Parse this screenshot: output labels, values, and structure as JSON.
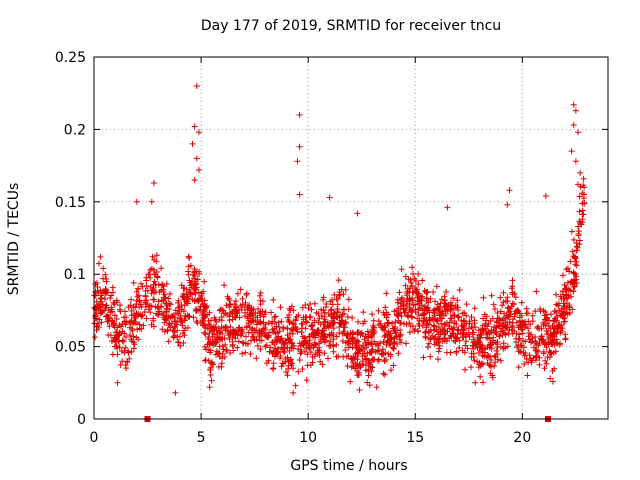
{
  "chart_data": {
    "type": "scatter",
    "title": "Day 177 of 2019, SRMTID for receiver tncu",
    "xlabel": "GPS time / hours",
    "ylabel": "SRMTID / TECUs",
    "xlim": [
      0,
      24
    ],
    "ylim": [
      0,
      0.25
    ],
    "grid": true,
    "x_ticks": [
      0,
      5,
      10,
      15,
      20
    ],
    "y_ticks": [
      0,
      0.05,
      0.1,
      0.15,
      0.2,
      0.25
    ],
    "x_tick_labels": [
      "0",
      "5",
      "10",
      "15",
      "20"
    ],
    "y_tick_labels": [
      "0",
      "0.05",
      "0.1",
      "0.15",
      "0.2",
      "0.25"
    ],
    "marker": "+",
    "color": "#e00000",
    "series": [
      {
        "name": "SRMTID",
        "profile": [
          {
            "x": 0.0,
            "y": 0.078
          },
          {
            "x": 0.5,
            "y": 0.085
          },
          {
            "x": 1.0,
            "y": 0.06
          },
          {
            "x": 1.5,
            "y": 0.055
          },
          {
            "x": 2.0,
            "y": 0.07
          },
          {
            "x": 2.5,
            "y": 0.085
          },
          {
            "x": 3.0,
            "y": 0.09
          },
          {
            "x": 3.5,
            "y": 0.07
          },
          {
            "x": 4.0,
            "y": 0.065
          },
          {
            "x": 4.5,
            "y": 0.095
          },
          {
            "x": 5.0,
            "y": 0.08
          },
          {
            "x": 5.5,
            "y": 0.05
          },
          {
            "x": 6.0,
            "y": 0.06
          },
          {
            "x": 6.5,
            "y": 0.065
          },
          {
            "x": 7.0,
            "y": 0.07
          },
          {
            "x": 7.5,
            "y": 0.065
          },
          {
            "x": 8.0,
            "y": 0.06
          },
          {
            "x": 8.5,
            "y": 0.055
          },
          {
            "x": 9.0,
            "y": 0.05
          },
          {
            "x": 9.5,
            "y": 0.06
          },
          {
            "x": 10.0,
            "y": 0.055
          },
          {
            "x": 10.5,
            "y": 0.06
          },
          {
            "x": 11.0,
            "y": 0.065
          },
          {
            "x": 11.5,
            "y": 0.07
          },
          {
            "x": 12.0,
            "y": 0.05
          },
          {
            "x": 12.5,
            "y": 0.045
          },
          {
            "x": 13.0,
            "y": 0.05
          },
          {
            "x": 13.5,
            "y": 0.055
          },
          {
            "x": 14.0,
            "y": 0.06
          },
          {
            "x": 14.5,
            "y": 0.08
          },
          {
            "x": 15.0,
            "y": 0.085
          },
          {
            "x": 15.5,
            "y": 0.07
          },
          {
            "x": 16.0,
            "y": 0.065
          },
          {
            "x": 16.5,
            "y": 0.07
          },
          {
            "x": 17.0,
            "y": 0.065
          },
          {
            "x": 17.5,
            "y": 0.06
          },
          {
            "x": 18.0,
            "y": 0.05
          },
          {
            "x": 18.5,
            "y": 0.055
          },
          {
            "x": 19.0,
            "y": 0.06
          },
          {
            "x": 19.5,
            "y": 0.075
          },
          {
            "x": 20.0,
            "y": 0.06
          },
          {
            "x": 20.5,
            "y": 0.055
          },
          {
            "x": 21.0,
            "y": 0.055
          },
          {
            "x": 21.5,
            "y": 0.06
          },
          {
            "x": 22.0,
            "y": 0.075
          },
          {
            "x": 22.5,
            "y": 0.11
          },
          {
            "x": 22.8,
            "y": 0.15
          }
        ],
        "spikes": [
          {
            "x": 4.8,
            "y": 0.23
          },
          {
            "x": 4.7,
            "y": 0.202
          },
          {
            "x": 4.9,
            "y": 0.198
          },
          {
            "x": 4.6,
            "y": 0.19
          },
          {
            "x": 4.8,
            "y": 0.18
          },
          {
            "x": 4.9,
            "y": 0.172
          },
          {
            "x": 4.7,
            "y": 0.165
          },
          {
            "x": 9.6,
            "y": 0.21
          },
          {
            "x": 9.6,
            "y": 0.188
          },
          {
            "x": 9.5,
            "y": 0.178
          },
          {
            "x": 9.6,
            "y": 0.155
          },
          {
            "x": 11.0,
            "y": 0.153
          },
          {
            "x": 12.3,
            "y": 0.142
          },
          {
            "x": 19.4,
            "y": 0.158
          },
          {
            "x": 21.1,
            "y": 0.154
          },
          {
            "x": 22.4,
            "y": 0.217
          },
          {
            "x": 22.5,
            "y": 0.213
          },
          {
            "x": 22.4,
            "y": 0.203
          },
          {
            "x": 22.6,
            "y": 0.198
          },
          {
            "x": 22.3,
            "y": 0.185
          },
          {
            "x": 22.5,
            "y": 0.178
          },
          {
            "x": 22.7,
            "y": 0.17
          },
          {
            "x": 22.6,
            "y": 0.162
          },
          {
            "x": 22.8,
            "y": 0.156
          },
          {
            "x": 2.8,
            "y": 0.163
          },
          {
            "x": 2.7,
            "y": 0.15
          },
          {
            "x": 2.0,
            "y": 0.15
          },
          {
            "x": 16.5,
            "y": 0.146
          },
          {
            "x": 19.3,
            "y": 0.148
          },
          {
            "x": 0.3,
            "y": 0.112
          },
          {
            "x": 1.1,
            "y": 0.025
          },
          {
            "x": 3.8,
            "y": 0.018
          },
          {
            "x": 5.4,
            "y": 0.022
          },
          {
            "x": 9.3,
            "y": 0.018
          },
          {
            "x": 12.4,
            "y": 0.02
          },
          {
            "x": 13.2,
            "y": 0.022
          },
          {
            "x": 17.8,
            "y": 0.025
          },
          {
            "x": 18.6,
            "y": 0.03
          },
          {
            "x": 21.3,
            "y": 0.028
          }
        ],
        "point_count": 2200
      }
    ],
    "outlier_markers": [
      {
        "x": 2.5,
        "y": 0.0
      },
      {
        "x": 21.2,
        "y": 0.0
      }
    ]
  }
}
